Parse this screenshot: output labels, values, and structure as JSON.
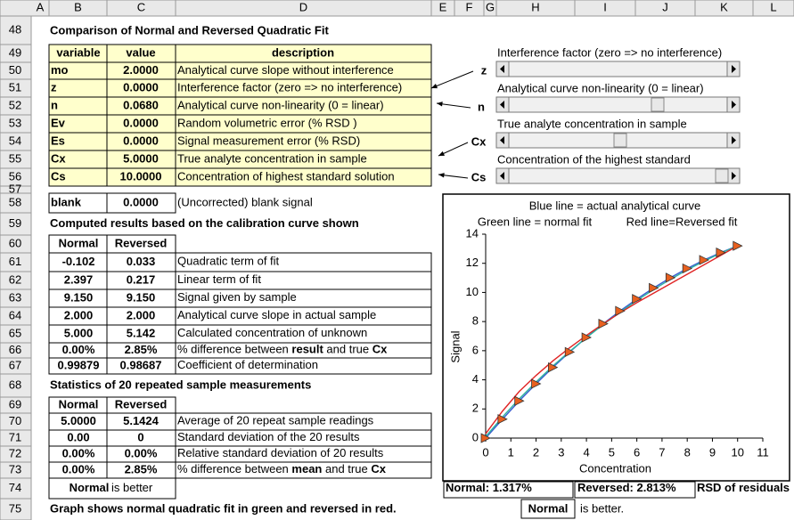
{
  "columns": [
    "A",
    "B",
    "C",
    "D",
    "E",
    "F",
    "G",
    "H",
    "I",
    "J",
    "K",
    "L"
  ],
  "rows": [
    48,
    49,
    50,
    51,
    52,
    53,
    54,
    55,
    56,
    57,
    58,
    59,
    60,
    61,
    62,
    63,
    64,
    65,
    66,
    67,
    68,
    69,
    70,
    71,
    72,
    73,
    74,
    75
  ],
  "title": "Comparison of Normal and Reversed Quadratic Fit",
  "inputs": {
    "header": [
      "variable",
      "value",
      "description"
    ],
    "rows": [
      [
        "mo",
        "2.0000",
        "Analytical curve slope without interference"
      ],
      [
        "z",
        "0.0000",
        "Interference factor (zero => no interference)"
      ],
      [
        "n",
        "0.0680",
        "Analytical curve non-linearity (0 = linear)"
      ],
      [
        "Ev",
        "0.0000",
        "Random volumetric error (% RSD )"
      ],
      [
        "Es",
        "0.0000",
        "Signal measurement error (% RSD)"
      ],
      [
        "Cx",
        "5.0000",
        "True analyte concentration in sample"
      ],
      [
        "Cs",
        "10.0000",
        "Concentration of highest standard solution"
      ],
      [
        "blank",
        "0.0000",
        "(Uncorrected) blank signal"
      ]
    ]
  },
  "sliders": [
    "Interference factor (zero => no interference)",
    "Analytical curve non-linearity (0 = linear)",
    "True analyte concentration in sample",
    "Concentration of the highest standard"
  ],
  "pointers": [
    "z",
    "n",
    "Cx",
    "Cs"
  ],
  "computed": {
    "heading": "Computed results based on the calibration curve shown",
    "header": [
      "Normal",
      "Reversed"
    ],
    "rows": [
      [
        "-0.102",
        "0.033",
        [
          "Quadratic term of fit"
        ]
      ],
      [
        "2.397",
        "0.217",
        [
          "Linear term of fit"
        ]
      ],
      [
        "9.150",
        "9.150",
        [
          "Signal given by sample"
        ]
      ],
      [
        "2.000",
        "2.000",
        [
          "Analytical curve slope in actual sample"
        ]
      ],
      [
        "5.000",
        "5.142",
        [
          "Calculated concentration of unknown"
        ]
      ],
      [
        "0.00%",
        "2.85%",
        [
          "% difference between ",
          "result",
          " and true ",
          "Cx"
        ]
      ],
      [
        "0.99879",
        "0.98687",
        [
          "Coefficient of determination"
        ]
      ]
    ]
  },
  "stats": {
    "heading": "Statistics of 20 repeated sample measurements",
    "header": [
      "Normal",
      "Reversed"
    ],
    "rows": [
      [
        "5.0000",
        "5.1424",
        [
          "Average of 20 repeat sample readings"
        ]
      ],
      [
        "0.00",
        "0",
        [
          "Standard deviation of the 20 results"
        ]
      ],
      [
        "0.00%",
        "0.00%",
        [
          "Relative standard deviation of 20 results"
        ]
      ],
      [
        "0.00%",
        "2.85%",
        [
          "% difference between ",
          "mean",
          " and true ",
          "Cx"
        ]
      ]
    ]
  },
  "verdict": [
    "Normal",
    "is better"
  ],
  "note": "Graph shows normal quadratic fit in green and reversed in red.",
  "residuals": [
    "Normal: 1.317%",
    "Reversed: 2.813%",
    "RSD of residuals"
  ],
  "conclusion": [
    "Normal",
    "is better."
  ],
  "chart": {
    "type": "line",
    "title": "Blue line = actual analytical curve",
    "subtitle": [
      "Green line = normal fit",
      "Red line=Reversed fit"
    ],
    "xlabel": "Concentration",
    "ylabel": "Signal",
    "xlim": [
      0,
      11
    ],
    "xticks": [
      0,
      1,
      2,
      3,
      4,
      5,
      6,
      7,
      8,
      9,
      10,
      11
    ],
    "ylim": [
      0,
      14
    ],
    "yticks": [
      0,
      2,
      4,
      6,
      8,
      10,
      12,
      14
    ],
    "x": [
      0,
      0.667,
      1.333,
      2,
      2.667,
      3.333,
      4,
      4.667,
      5.333,
      6,
      6.667,
      7.333,
      8,
      8.667,
      9.333,
      10
    ],
    "series": [
      {
        "color": "#3b5fd0",
        "values": [
          0,
          1.3,
          2.55,
          3.73,
          4.85,
          5.91,
          6.91,
          7.85,
          8.73,
          9.55,
          10.31,
          11.01,
          11.65,
          12.23,
          12.74,
          13.2
        ]
      },
      {
        "color": "#2fb3a0",
        "values": [
          0.1,
          1.45,
          2.7,
          3.85,
          4.95,
          5.95,
          6.9,
          7.8,
          8.65,
          9.45,
          10.2,
          10.9,
          11.55,
          12.15,
          12.7,
          13.2
        ]
      },
      {
        "color": "#e02424",
        "values": [
          0.3,
          1.85,
          3.2,
          4.3,
          5.3,
          6.2,
          7.05,
          7.85,
          8.6,
          9.3,
          9.95,
          10.6,
          11.25,
          11.9,
          12.55,
          13.2
        ]
      },
      {
        "color": "#e8601f",
        "marker": "triangle",
        "values": [
          0,
          1.3,
          2.55,
          3.73,
          4.85,
          5.91,
          6.91,
          7.85,
          8.73,
          9.55,
          10.31,
          11.01,
          11.65,
          12.23,
          12.74,
          13.2
        ]
      }
    ]
  }
}
